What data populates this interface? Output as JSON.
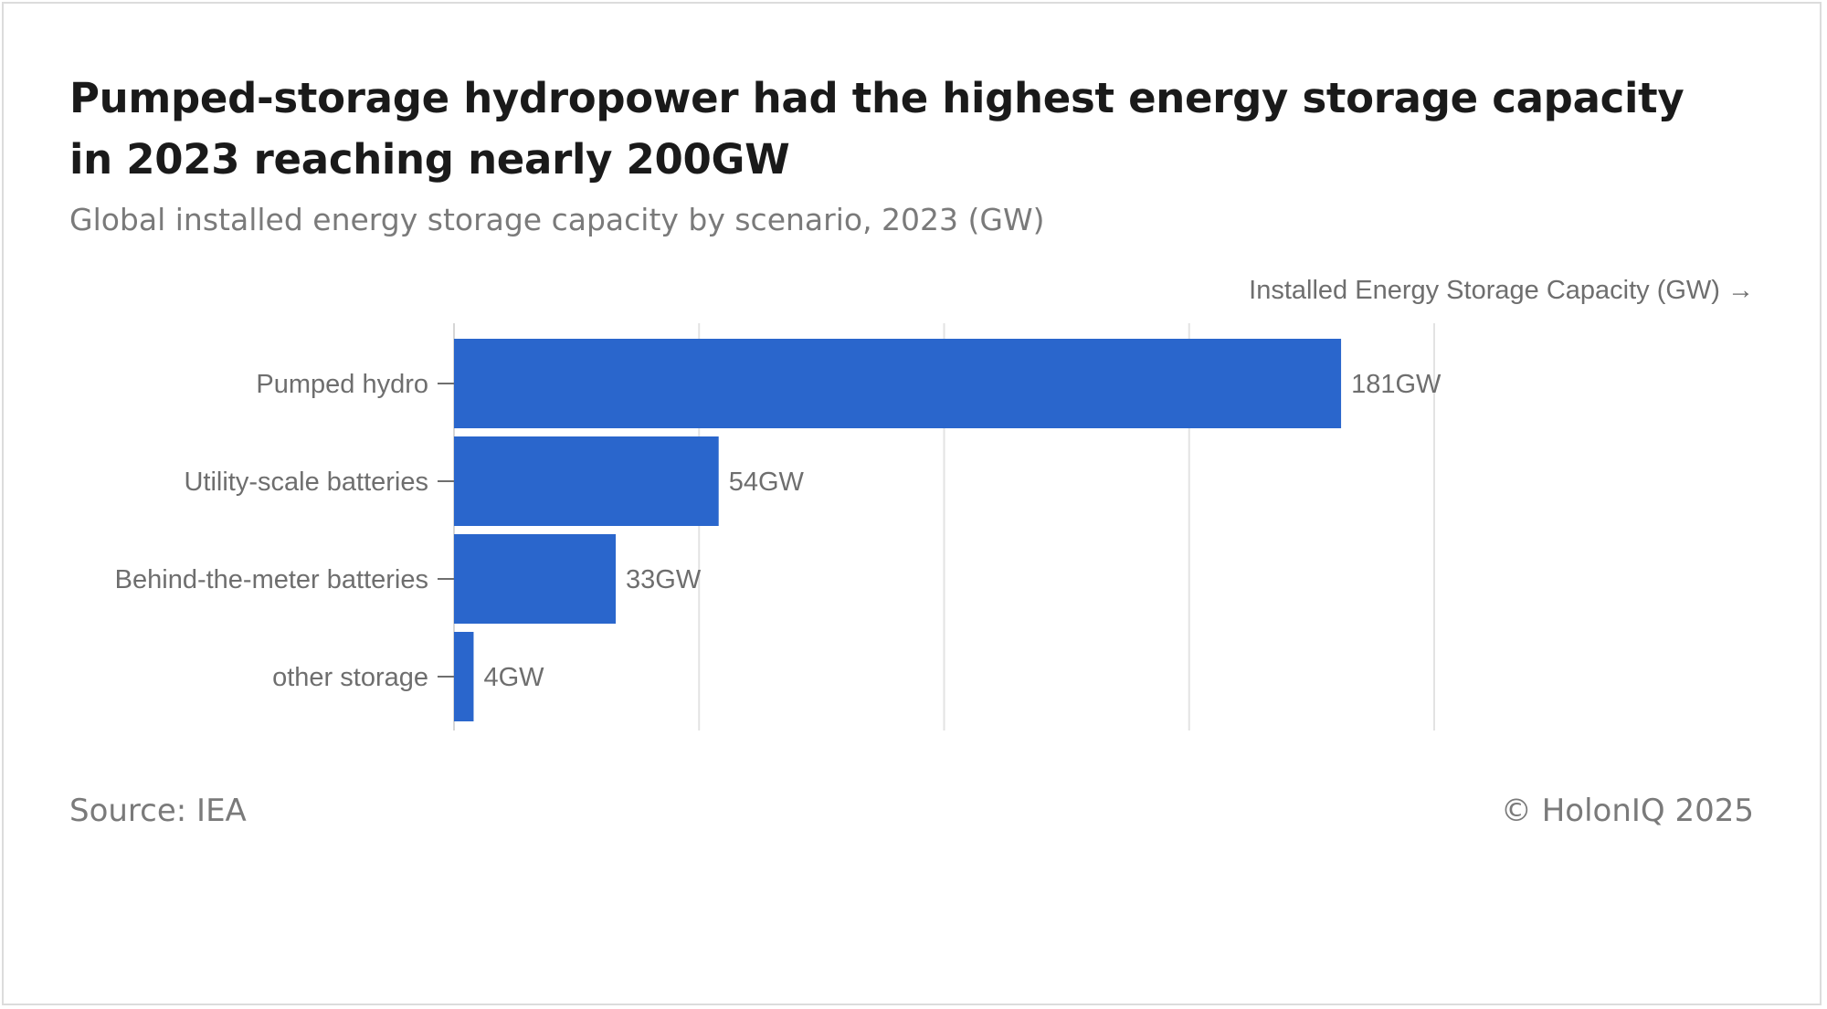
{
  "title": "Pumped-storage hydropower had the highest energy storage capacity in 2023 reaching nearly 200GW",
  "subtitle": "Global installed energy storage capacity by scenario, 2023 (GW)",
  "footer": {
    "source": "Source: IEA",
    "copyright": "© HolonIQ 2025"
  },
  "chart_data": {
    "type": "bar",
    "orientation": "horizontal",
    "title": "Pumped-storage hydropower had the highest energy storage capacity in 2023 reaching nearly 200GW",
    "subtitle": "Global installed energy storage capacity by scenario, 2023 (GW)",
    "xlabel": "Installed Energy Storage Capacity (GW) →",
    "ylabel": "",
    "categories": [
      "Pumped hydro",
      "Utility-scale batteries",
      "Behind-the-meter batteries",
      "other storage"
    ],
    "values": [
      181,
      54,
      33,
      4
    ],
    "data_labels": [
      "181GW",
      "54GW",
      "33GW",
      "4GW"
    ],
    "xlim": [
      0,
      200
    ],
    "gridlines": [
      0,
      50,
      100,
      150,
      200
    ],
    "grid": true,
    "bar_color": "#2a66cc"
  }
}
